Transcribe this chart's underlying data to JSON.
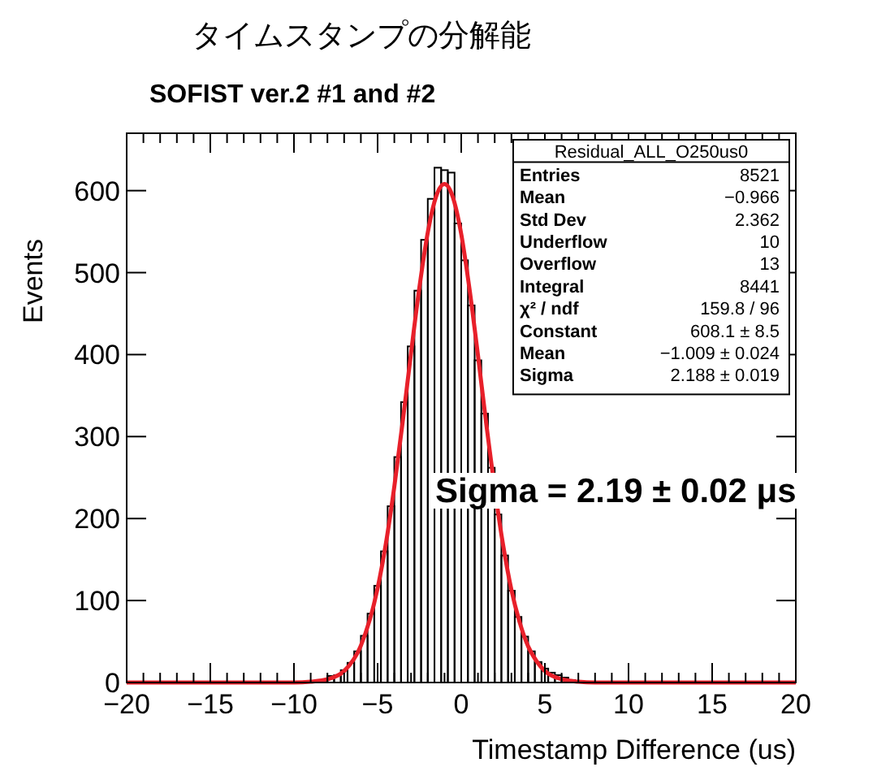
{
  "chart_data": {
    "type": "histogram",
    "title": "タイムスタンプの分解能",
    "subtitle": "SOFIST ver.2 #1 and #2",
    "xlabel": "Timestamp Difference (us)",
    "ylabel": "Events",
    "bins": [
      -20,
      -19.6,
      -19.2,
      -18.8,
      -18.4,
      -18,
      -17.6,
      -17.2,
      -16.8,
      -16.4,
      -16,
      -15.6,
      -15.2,
      -14.8,
      -14.4,
      -14,
      -13.6,
      -13.2,
      -12.8,
      -12.4,
      -12,
      -11.6,
      -11.2,
      -10.8,
      -10.4,
      -10,
      -9.6,
      -9.2,
      -8.8,
      -8.4,
      -8,
      -7.6,
      -7.2,
      -6.8,
      -6.4,
      -6,
      -5.6,
      -5.2,
      -4.8,
      -4.4,
      -4,
      -3.6,
      -3.2,
      -2.8,
      -2.4,
      -2,
      -1.6,
      -1.2,
      -0.8,
      -0.4,
      0,
      0.4,
      0.8,
      1.2,
      1.6,
      2,
      2.4,
      2.8,
      3.2,
      3.6,
      4,
      4.4,
      4.8,
      5.2,
      5.6,
      6,
      6.4,
      6.8,
      7.2,
      7.6,
      8,
      8.4,
      8.8,
      9.2,
      9.6,
      10,
      10.4,
      10.8,
      11.2,
      11.6,
      12,
      12.4,
      12.8,
      13.2,
      13.6,
      14,
      14.4,
      14.8,
      15.2,
      15.6,
      16,
      16.4,
      16.8,
      17.2,
      17.6,
      18,
      18.4,
      18.8,
      19.2,
      19.6,
      20
    ],
    "series": [
      {
        "color": "#000000",
        "values": [
          0,
          0,
          0,
          0,
          0,
          0,
          0,
          0,
          0,
          0,
          0,
          0,
          0,
          0,
          0,
          0,
          0,
          0,
          0,
          0,
          0,
          0,
          0,
          0,
          0,
          0,
          0,
          0,
          0,
          2,
          8,
          9,
          15,
          24,
          38,
          57,
          84,
          118,
          160,
          215,
          275,
          342,
          410,
          478,
          540,
          590,
          628,
          625,
          622,
          560,
          515,
          460,
          393,
          328,
          262,
          205,
          155,
          112,
          80,
          56,
          38,
          25,
          17,
          12,
          9,
          6,
          3,
          0,
          0,
          0,
          0,
          0,
          0,
          0,
          0,
          0,
          0,
          0,
          0,
          0,
          0,
          0,
          0,
          0,
          0,
          0,
          0,
          0,
          0,
          0,
          0,
          0,
          0,
          0,
          0,
          0,
          0,
          0,
          0,
          0
        ]
      },
      {
        "type": "line",
        "color": "#e8202a",
        "x": [
          -20,
          -10,
          -9,
          -8,
          -7,
          -6,
          -5,
          -4.5,
          -4,
          -3.5,
          -3,
          -2.5,
          -2,
          -1.5,
          -1,
          -0.5,
          0,
          0.5,
          1,
          1.5,
          2,
          2.5,
          3,
          3.5,
          4,
          4.5,
          5,
          6,
          7,
          8,
          20
        ],
        "values": [
          0,
          0,
          1,
          4,
          14,
          45,
          115,
          170,
          239,
          318,
          402,
          482,
          549,
          593,
          608,
          592,
          547,
          479,
          399,
          315,
          null,
          168,
          113,
          73,
          44,
          26,
          14,
          4,
          1,
          0,
          0
        ]
      }
    ],
    "xlim": [
      -20,
      20
    ],
    "ylim": [
      0,
      670
    ],
    "xticks": [
      -20,
      {
        "value": -19,
        "label": null
      },
      {
        "value": -18,
        "label": null
      },
      {
        "value": -17,
        "label": null
      },
      {
        "value": -16,
        "label": null
      },
      -15,
      {
        "value": -14,
        "label": null
      },
      {
        "value": -13,
        "label": null
      },
      {
        "value": -12,
        "label": null
      },
      {
        "value": -11,
        "label": null
      },
      -10,
      {
        "value": -9,
        "label": null
      },
      {
        "value": -8,
        "label": null
      },
      {
        "value": -7,
        "label": null
      },
      {
        "value": -6,
        "label": null
      },
      -5,
      {
        "value": -4,
        "label": null
      },
      {
        "value": -3,
        "label": null
      },
      {
        "value": -2,
        "label": null
      },
      {
        "value": -1,
        "label": null
      },
      0,
      {
        "value": 1,
        "label": null
      },
      {
        "value": 2,
        "label": null
      },
      {
        "value": 3,
        "label": null
      },
      {
        "value": 4,
        "label": null
      },
      5,
      {
        "value": 6,
        "label": null
      },
      {
        "value": 7,
        "label": null
      },
      {
        "value": 8,
        "label": null
      },
      {
        "value": 9,
        "label": null
      },
      10,
      {
        "value": 11,
        "label": null
      },
      {
        "value": 12,
        "label": null
      },
      {
        "value": 13,
        "label": null
      },
      {
        "value": 14,
        "label": null
      },
      15,
      {
        "value": 16,
        "label": null
      },
      {
        "value": 17,
        "label": null
      },
      {
        "value": 18,
        "label": null
      },
      {
        "value": 19,
        "label": null
      },
      20
    ],
    "yticks": [
      0,
      100,
      200,
      300,
      400,
      500,
      600
    ],
    "annotations": [
      "Residual_ALL_O250us0",
      "Entries",
      "8521",
      "Mean",
      "−0.966",
      "Std Dev",
      "2.362",
      "Underflow",
      "10",
      "Overflow",
      "13",
      "Integral",
      "8441",
      "χ² / ndf",
      "159.8 / 96",
      "Constant",
      "608.1 ± 8.5",
      "Mean",
      "−1.009 ± 0.024",
      "Sigma",
      "2.188 ± 0.019",
      "Sigma = 2.19 ± 0.02 μs"
    ]
  }
}
